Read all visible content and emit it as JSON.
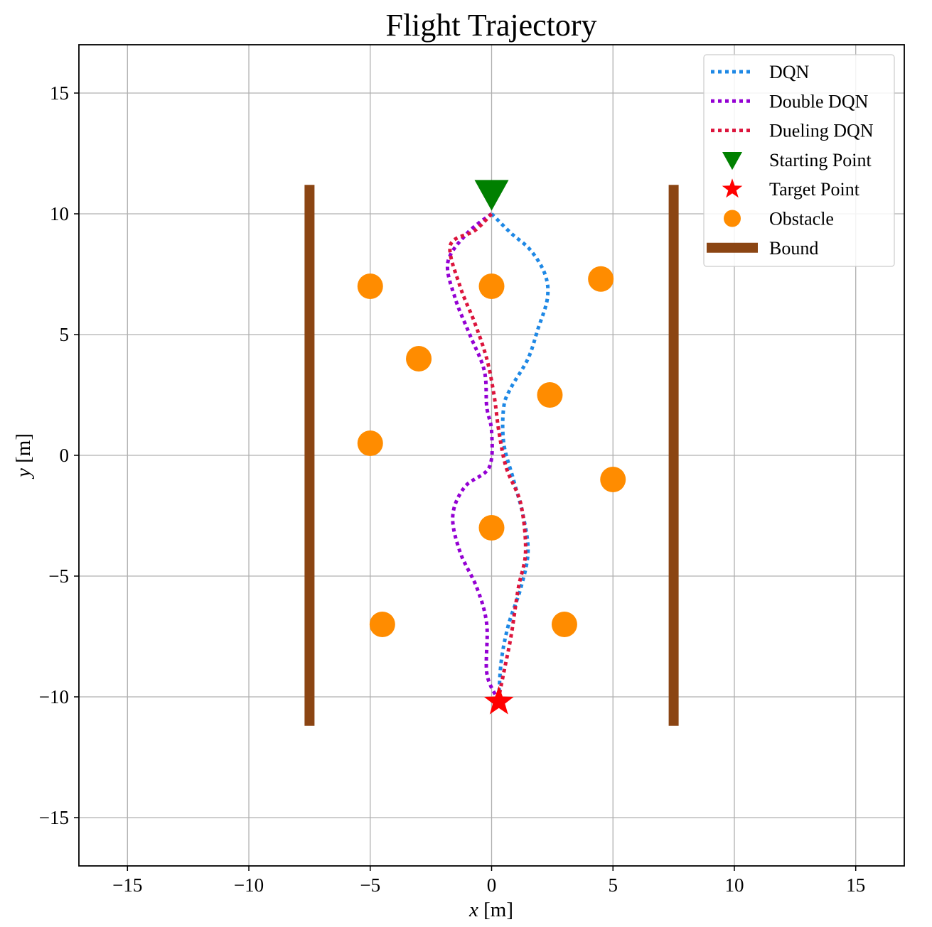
{
  "chart_data": {
    "type": "scatter",
    "title": "Flight Trajectory",
    "xlabel": {
      "var": "x",
      "unit": " [m]"
    },
    "ylabel": {
      "var": "y",
      "unit": " [m]"
    },
    "xlim": [
      -17,
      17
    ],
    "ylim": [
      -17,
      17
    ],
    "x_ticks": [
      -15,
      -10,
      -5,
      0,
      5,
      10,
      15
    ],
    "y_ticks": [
      -15,
      -10,
      -5,
      0,
      5,
      10,
      15
    ],
    "x_tick_labels": [
      "−15",
      "−10",
      "−5",
      "0",
      "5",
      "10",
      "15"
    ],
    "y_tick_labels": [
      "−15",
      "−10",
      "−5",
      "0",
      "5",
      "10",
      "15"
    ],
    "grid": true,
    "legend_position": "top-right",
    "legend": [
      {
        "label": "DQN",
        "kind": "dotted-line",
        "color": "#1e88e5"
      },
      {
        "label": "Double DQN",
        "kind": "dotted-line",
        "color": "#9400d3"
      },
      {
        "label": "Dueling DQN",
        "kind": "dotted-line",
        "color": "#dc143c"
      },
      {
        "label": "Starting Point",
        "kind": "triangle-down",
        "color": "#008000"
      },
      {
        "label": "Target Point",
        "kind": "star",
        "color": "#ff0000"
      },
      {
        "label": "Obstacle",
        "kind": "circle",
        "color": "#ff8c00"
      },
      {
        "label": "Bound",
        "kind": "thick-line",
        "color": "#8b4513"
      }
    ],
    "series": [
      {
        "name": "DQN",
        "color": "#1e88e5",
        "points": [
          [
            0,
            10
          ],
          [
            0.8,
            9.2
          ],
          [
            1.6,
            8.5
          ],
          [
            2.2,
            7.5
          ],
          [
            2.3,
            6.5
          ],
          [
            1.9,
            5.2
          ],
          [
            1.5,
            4
          ],
          [
            0.8,
            2.8
          ],
          [
            0.5,
            2
          ],
          [
            0.5,
            0.5
          ],
          [
            0.9,
            -1
          ],
          [
            1.3,
            -2.5
          ],
          [
            1.5,
            -4
          ],
          [
            1.2,
            -5.5
          ],
          [
            0.7,
            -7
          ],
          [
            0.4,
            -8.5
          ],
          [
            0.3,
            -10
          ]
        ]
      },
      {
        "name": "Double DQN",
        "color": "#9400d3",
        "points": [
          [
            0,
            10
          ],
          [
            -1,
            9.2
          ],
          [
            -1.8,
            8
          ],
          [
            -1.5,
            6.5
          ],
          [
            -0.9,
            5
          ],
          [
            -0.3,
            3.5
          ],
          [
            -0.2,
            2
          ],
          [
            0,
            1
          ],
          [
            -0.1,
            -0.5
          ],
          [
            -1.1,
            -1.3
          ],
          [
            -1.6,
            -2.5
          ],
          [
            -1.3,
            -4
          ],
          [
            -0.6,
            -5.5
          ],
          [
            -0.2,
            -7
          ],
          [
            -0.2,
            -9
          ],
          [
            0.2,
            -10
          ]
        ]
      },
      {
        "name": "Dueling DQN",
        "color": "#dc143c",
        "points": [
          [
            0,
            10
          ],
          [
            -0.7,
            9.3
          ],
          [
            -1.7,
            8.7
          ],
          [
            -1.3,
            7
          ],
          [
            -0.7,
            5.5
          ],
          [
            -0.2,
            4
          ],
          [
            0.1,
            2.5
          ],
          [
            0.3,
            1
          ],
          [
            0.6,
            -0.5
          ],
          [
            1.2,
            -2
          ],
          [
            1.4,
            -4
          ],
          [
            1.1,
            -5.5
          ],
          [
            0.8,
            -7.5
          ],
          [
            0.5,
            -9
          ],
          [
            0.3,
            -10
          ]
        ]
      }
    ],
    "start_point": [
      0,
      10.8
    ],
    "target_point": [
      0.3,
      -10.2
    ],
    "obstacles": [
      [
        -5,
        7
      ],
      [
        0,
        7
      ],
      [
        4.5,
        7.3
      ],
      [
        -3,
        4
      ],
      [
        2.4,
        2.5
      ],
      [
        -5,
        0.5
      ],
      [
        5,
        -1
      ],
      [
        0,
        -3
      ],
      [
        -4.5,
        -7
      ],
      [
        3,
        -7
      ]
    ],
    "bounds": [
      {
        "x": -7.5,
        "y": [
          -11.2,
          11.2
        ]
      },
      {
        "x": 7.5,
        "y": [
          -11.2,
          11.2
        ]
      }
    ]
  }
}
